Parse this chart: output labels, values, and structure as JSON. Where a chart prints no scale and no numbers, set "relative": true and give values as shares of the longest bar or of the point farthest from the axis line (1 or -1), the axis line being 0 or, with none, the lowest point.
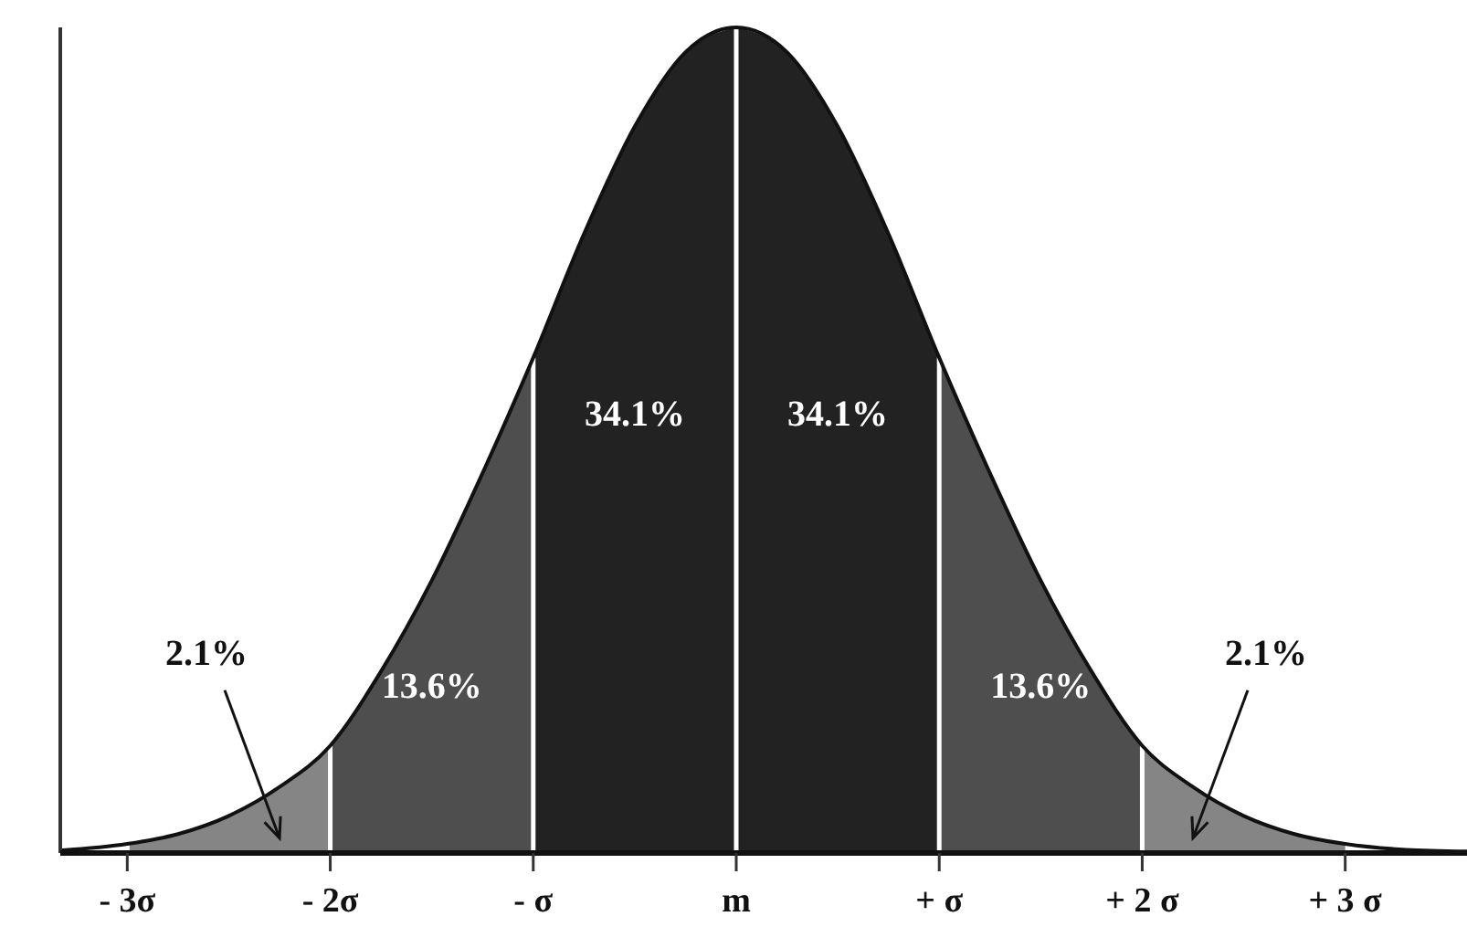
{
  "chart_data": {
    "type": "area",
    "relative": true,
    "xlim": [
      -3.33,
      3.6
    ],
    "xticks": [
      {
        "value": -3,
        "label": "- 3σ"
      },
      {
        "value": -2,
        "label": "- 2σ"
      },
      {
        "value": -1,
        "label": "- σ"
      },
      {
        "value": 0,
        "label": "m"
      },
      {
        "value": 1,
        "label": "+ σ"
      },
      {
        "value": 2,
        "label": "+ 2 σ"
      },
      {
        "value": 3,
        "label": "+ 3 σ"
      }
    ],
    "series": [
      {
        "color": "#858585",
        "x": [
          -3,
          -2.75,
          -2.5,
          -2.25,
          -2
        ],
        "values": [
          0.011,
          0.023,
          0.045,
          0.08,
          0.13
        ]
      },
      {
        "color": "#4e4e4e",
        "x": [
          -2,
          -1.75,
          -1.5,
          -1.25,
          -1
        ],
        "values": [
          0.13,
          0.22,
          0.33,
          0.46,
          0.6
        ]
      },
      {
        "color": "#222222",
        "x": [
          -1,
          -0.75,
          -0.5,
          -0.25,
          0
        ],
        "values": [
          0.6,
          0.75,
          0.88,
          0.97,
          1
        ]
      },
      {
        "color": "#222222",
        "x": [
          0,
          0.25,
          0.5,
          0.75,
          1
        ],
        "values": [
          1,
          0.97,
          0.88,
          0.75,
          0.6
        ]
      },
      {
        "color": "#4e4e4e",
        "x": [
          1,
          1.25,
          1.5,
          1.75,
          2
        ],
        "values": [
          0.6,
          0.46,
          0.33,
          0.22,
          0.13
        ]
      },
      {
        "color": "#858585",
        "x": [
          2,
          2.25,
          2.5,
          2.75,
          3
        ],
        "values": [
          0.13,
          0.08,
          0.045,
          0.023,
          0.011
        ]
      },
      {
        "type": "line",
        "color": "#111111",
        "x": [
          -3.33,
          -3,
          -2.75,
          -2.5,
          -2.25,
          -2,
          -1.75,
          -1.5,
          -1.25,
          -1,
          -0.75,
          -0.5,
          -0.25,
          0,
          0.25,
          0.5,
          0.75,
          1,
          1.25,
          1.5,
          1.75,
          2,
          2.25,
          2.5,
          2.75,
          3,
          3.3,
          3.6
        ],
        "values": [
          0.003,
          0.011,
          0.023,
          0.045,
          0.08,
          0.13,
          0.22,
          0.33,
          0.46,
          0.6,
          0.75,
          0.88,
          0.97,
          1,
          0.97,
          0.88,
          0.75,
          0.6,
          0.46,
          0.33,
          0.22,
          0.13,
          0.08,
          0.045,
          0.023,
          0.011,
          0.004,
          0.002
        ]
      }
    ],
    "annotations": [
      "2.1%",
      "13.6%",
      "34.1%",
      "34.1%",
      "13.6%",
      "2.1%"
    ]
  }
}
